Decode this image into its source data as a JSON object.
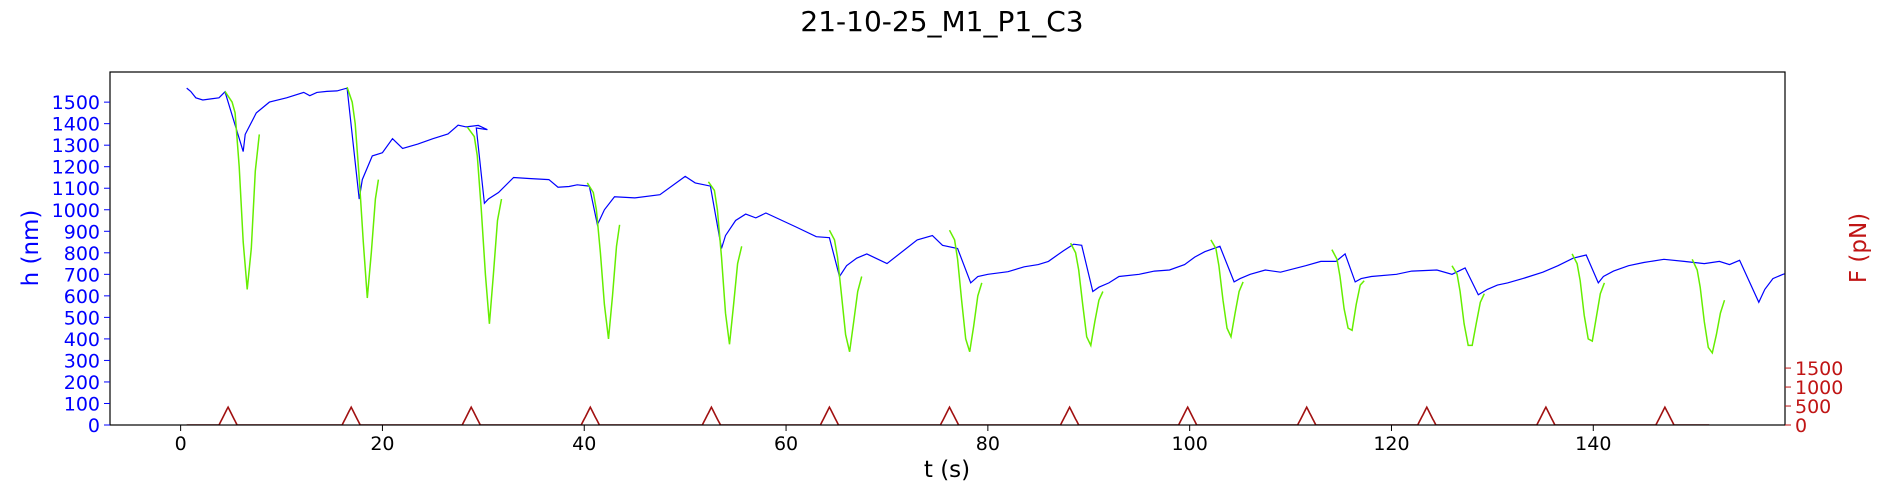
{
  "chart_data": {
    "type": "line",
    "title": "21-10-25_M1_P1_C3",
    "xlabel": "t (s)",
    "ylabel_left": "h (nm)",
    "ylabel_right": "F (pN)",
    "xlim": [
      -7,
      159
    ],
    "ylim_left": [
      0,
      1640
    ],
    "ylim_right": [
      0,
      9300
    ],
    "x_ticks": [
      0,
      20,
      40,
      60,
      80,
      100,
      120,
      140
    ],
    "y_ticks_left": [
      0,
      100,
      200,
      300,
      400,
      500,
      600,
      700,
      800,
      900,
      1000,
      1100,
      1200,
      1300,
      1400,
      1500
    ],
    "y_ticks_right": [
      0,
      500,
      1000,
      1500
    ],
    "grid": false,
    "colors": {
      "height_trace": "#0000ff",
      "indent_segment": "#66ee00",
      "force_trace": "#a11111",
      "left_axis": "#0000ff",
      "right_axis": "#c01515"
    },
    "series": [
      {
        "axis": "left",
        "role": "height_trace",
        "points": [
          [
            0.6,
            1565
          ],
          [
            1,
            1550
          ],
          [
            1.5,
            1520
          ],
          [
            2.2,
            1510
          ],
          [
            3,
            1515
          ],
          [
            3.8,
            1520
          ],
          [
            4.4,
            1548
          ],
          [
            6.2,
            1270
          ],
          [
            6.4,
            1350
          ],
          [
            7.5,
            1450
          ],
          [
            8.8,
            1500
          ],
          [
            10.5,
            1520
          ],
          [
            12.2,
            1545
          ],
          [
            12.8,
            1530
          ],
          [
            13.5,
            1545
          ],
          [
            14.5,
            1550
          ],
          [
            15.5,
            1552
          ],
          [
            16.5,
            1565
          ],
          [
            17.7,
            1050
          ],
          [
            18,
            1140
          ],
          [
            19,
            1250
          ],
          [
            20,
            1265
          ],
          [
            21,
            1330
          ],
          [
            22,
            1285
          ],
          [
            23.5,
            1305
          ],
          [
            25,
            1330
          ],
          [
            26.5,
            1352
          ],
          [
            27.5,
            1393
          ],
          [
            28.3,
            1385
          ],
          [
            29.5,
            1392
          ],
          [
            30.4,
            1372
          ],
          [
            29.3,
            1380
          ],
          [
            30.1,
            1030
          ],
          [
            30.5,
            1050
          ],
          [
            31.5,
            1080
          ],
          [
            33,
            1150
          ],
          [
            34.5,
            1145
          ],
          [
            36.5,
            1140
          ],
          [
            37.4,
            1105
          ],
          [
            38.5,
            1108
          ],
          [
            39.3,
            1116
          ],
          [
            40.5,
            1110
          ],
          [
            41.3,
            930
          ],
          [
            42,
            1000
          ],
          [
            43,
            1060
          ],
          [
            45,
            1055
          ],
          [
            47.5,
            1070
          ],
          [
            50,
            1155
          ],
          [
            51,
            1125
          ],
          [
            52.5,
            1110
          ],
          [
            53.6,
            820
          ],
          [
            54,
            880
          ],
          [
            55,
            950
          ],
          [
            56,
            980
          ],
          [
            57,
            962
          ],
          [
            58,
            985
          ],
          [
            61,
            920
          ],
          [
            63,
            875
          ],
          [
            64.3,
            870
          ],
          [
            65.3,
            690
          ],
          [
            66,
            740
          ],
          [
            67,
            775
          ],
          [
            68,
            795
          ],
          [
            70,
            750
          ],
          [
            73,
            860
          ],
          [
            74.5,
            880
          ],
          [
            75.5,
            835
          ],
          [
            77,
            820
          ],
          [
            78.3,
            660
          ],
          [
            79,
            690
          ],
          [
            80,
            700
          ],
          [
            82,
            712
          ],
          [
            83.6,
            735
          ],
          [
            85,
            745
          ],
          [
            86,
            760
          ],
          [
            87.5,
            810
          ],
          [
            88.5,
            840
          ],
          [
            89.3,
            835
          ],
          [
            90.4,
            620
          ],
          [
            91,
            640
          ],
          [
            92,
            660
          ],
          [
            93,
            690
          ],
          [
            95,
            700
          ],
          [
            96.5,
            715
          ],
          [
            98,
            720
          ],
          [
            99.5,
            745
          ],
          [
            100.5,
            780
          ],
          [
            101.5,
            805
          ],
          [
            103,
            830
          ],
          [
            104.4,
            665
          ],
          [
            105,
            680
          ],
          [
            106,
            700
          ],
          [
            107.5,
            720
          ],
          [
            109,
            710
          ],
          [
            111.5,
            740
          ],
          [
            113,
            760
          ],
          [
            114.5,
            760
          ],
          [
            115.4,
            795
          ],
          [
            116.4,
            665
          ],
          [
            117,
            680
          ],
          [
            118,
            690
          ],
          [
            120.5,
            700
          ],
          [
            122,
            715
          ],
          [
            124.5,
            720
          ],
          [
            126,
            700
          ],
          [
            127.3,
            730
          ],
          [
            128.6,
            605
          ],
          [
            129.5,
            630
          ],
          [
            130.5,
            650
          ],
          [
            131.5,
            660
          ],
          [
            133,
            680
          ],
          [
            135,
            710
          ],
          [
            136.5,
            740
          ],
          [
            138,
            775
          ],
          [
            139.3,
            790
          ],
          [
            140.5,
            660
          ],
          [
            141,
            690
          ],
          [
            142,
            715
          ],
          [
            143.5,
            740
          ],
          [
            145,
            755
          ],
          [
            147,
            770
          ],
          [
            149,
            760
          ],
          [
            151,
            750
          ],
          [
            152.5,
            760
          ],
          [
            153.5,
            745
          ],
          [
            154.5,
            765
          ],
          [
            156.4,
            570
          ],
          [
            157,
            630
          ],
          [
            157.8,
            680
          ],
          [
            158.8,
            700
          ],
          [
            160.5,
            720
          ],
          [
            162,
            735
          ]
        ]
      },
      {
        "axis": "left",
        "role": "indent_segment",
        "points": [
          [
            4.4,
            1550
          ],
          [
            5.1,
            1500
          ],
          [
            5.4,
            1450
          ],
          [
            5.8,
            1200
          ],
          [
            6.2,
            850
          ],
          [
            6.6,
            630
          ],
          [
            7,
            820
          ],
          [
            7.4,
            1180
          ],
          [
            7.8,
            1350
          ]
        ]
      },
      {
        "axis": "left",
        "role": "indent_segment",
        "points": [
          [
            16.5,
            1570
          ],
          [
            17,
            1500
          ],
          [
            17.3,
            1400
          ],
          [
            17.7,
            1150
          ],
          [
            18.1,
            850
          ],
          [
            18.5,
            590
          ],
          [
            18.9,
            800
          ],
          [
            19.3,
            1050
          ],
          [
            19.6,
            1140
          ]
        ]
      },
      {
        "axis": "left",
        "role": "indent_segment",
        "points": [
          [
            28.4,
            1385
          ],
          [
            29.1,
            1340
          ],
          [
            29.4,
            1250
          ],
          [
            29.8,
            1000
          ],
          [
            30.2,
            700
          ],
          [
            30.6,
            470
          ],
          [
            31,
            700
          ],
          [
            31.4,
            950
          ],
          [
            31.8,
            1050
          ]
        ]
      },
      {
        "axis": "left",
        "role": "indent_segment",
        "points": [
          [
            40.3,
            1125
          ],
          [
            40.9,
            1080
          ],
          [
            41.2,
            1000
          ],
          [
            41.6,
            800
          ],
          [
            42,
            560
          ],
          [
            42.4,
            400
          ],
          [
            42.8,
            600
          ],
          [
            43.2,
            830
          ],
          [
            43.5,
            930
          ]
        ]
      },
      {
        "axis": "left",
        "role": "indent_segment",
        "points": [
          [
            52.3,
            1130
          ],
          [
            52.9,
            1090
          ],
          [
            53.2,
            1000
          ],
          [
            53.6,
            780
          ],
          [
            54,
            520
          ],
          [
            54.4,
            375
          ],
          [
            54.8,
            560
          ],
          [
            55.2,
            750
          ],
          [
            55.6,
            830
          ]
        ]
      },
      {
        "axis": "left",
        "role": "indent_segment",
        "points": [
          [
            64.3,
            905
          ],
          [
            64.8,
            860
          ],
          [
            65.1,
            780
          ],
          [
            65.5,
            600
          ],
          [
            65.9,
            420
          ],
          [
            66.3,
            340
          ],
          [
            66.7,
            480
          ],
          [
            67.1,
            620
          ],
          [
            67.5,
            690
          ]
        ]
      },
      {
        "axis": "left",
        "role": "indent_segment",
        "points": [
          [
            76.2,
            905
          ],
          [
            76.7,
            860
          ],
          [
            77,
            770
          ],
          [
            77.4,
            580
          ],
          [
            77.8,
            400
          ],
          [
            78.2,
            340
          ],
          [
            78.6,
            460
          ],
          [
            79,
            600
          ],
          [
            79.4,
            660
          ]
        ]
      },
      {
        "axis": "left",
        "role": "indent_segment",
        "points": [
          [
            88.2,
            845
          ],
          [
            88.7,
            800
          ],
          [
            89,
            720
          ],
          [
            89.4,
            560
          ],
          [
            89.8,
            410
          ],
          [
            90.2,
            370
          ],
          [
            90.6,
            480
          ],
          [
            91,
            580
          ],
          [
            91.4,
            620
          ]
        ]
      },
      {
        "axis": "left",
        "role": "indent_segment",
        "points": [
          [
            102.1,
            860
          ],
          [
            102.6,
            820
          ],
          [
            102.9,
            740
          ],
          [
            103.3,
            580
          ],
          [
            103.7,
            450
          ],
          [
            104.1,
            410
          ],
          [
            104.5,
            520
          ],
          [
            104.9,
            620
          ],
          [
            105.3,
            665
          ]
        ]
      },
      {
        "axis": "left",
        "role": "indent_segment",
        "points": [
          [
            114.1,
            815
          ],
          [
            114.6,
            770
          ],
          [
            114.9,
            690
          ],
          [
            115.3,
            540
          ],
          [
            115.7,
            450
          ],
          [
            116.1,
            440
          ],
          [
            116.5,
            560
          ],
          [
            116.9,
            650
          ],
          [
            117.3,
            670
          ]
        ]
      },
      {
        "axis": "left",
        "role": "indent_segment",
        "points": [
          [
            126,
            740
          ],
          [
            126.5,
            700
          ],
          [
            126.8,
            620
          ],
          [
            127.2,
            470
          ],
          [
            127.6,
            370
          ],
          [
            128,
            370
          ],
          [
            128.4,
            470
          ],
          [
            128.8,
            570
          ],
          [
            129.2,
            610
          ]
        ]
      },
      {
        "axis": "left",
        "role": "indent_segment",
        "points": [
          [
            137.9,
            795
          ],
          [
            138.4,
            750
          ],
          [
            138.7,
            670
          ],
          [
            139.1,
            510
          ],
          [
            139.5,
            400
          ],
          [
            139.9,
            390
          ],
          [
            140.3,
            500
          ],
          [
            140.7,
            610
          ],
          [
            141.1,
            660
          ]
        ]
      },
      {
        "axis": "left",
        "role": "indent_segment",
        "points": [
          [
            149.8,
            770
          ],
          [
            150.3,
            720
          ],
          [
            150.6,
            640
          ],
          [
            151,
            480
          ],
          [
            151.4,
            360
          ],
          [
            151.8,
            335
          ],
          [
            152.2,
            420
          ],
          [
            152.6,
            520
          ],
          [
            153,
            580
          ]
        ]
      },
      {
        "axis": "right",
        "role": "force_trace",
        "baseline": 0,
        "span": [
          0.6,
          151.5
        ],
        "peak_height": 470,
        "peak_halfwidth": 0.9,
        "peak_times": [
          4.7,
          16.9,
          28.8,
          40.6,
          52.6,
          64.3,
          76.2,
          88.1,
          99.8,
          111.6,
          123.5,
          135.3,
          147.1
        ]
      }
    ]
  }
}
